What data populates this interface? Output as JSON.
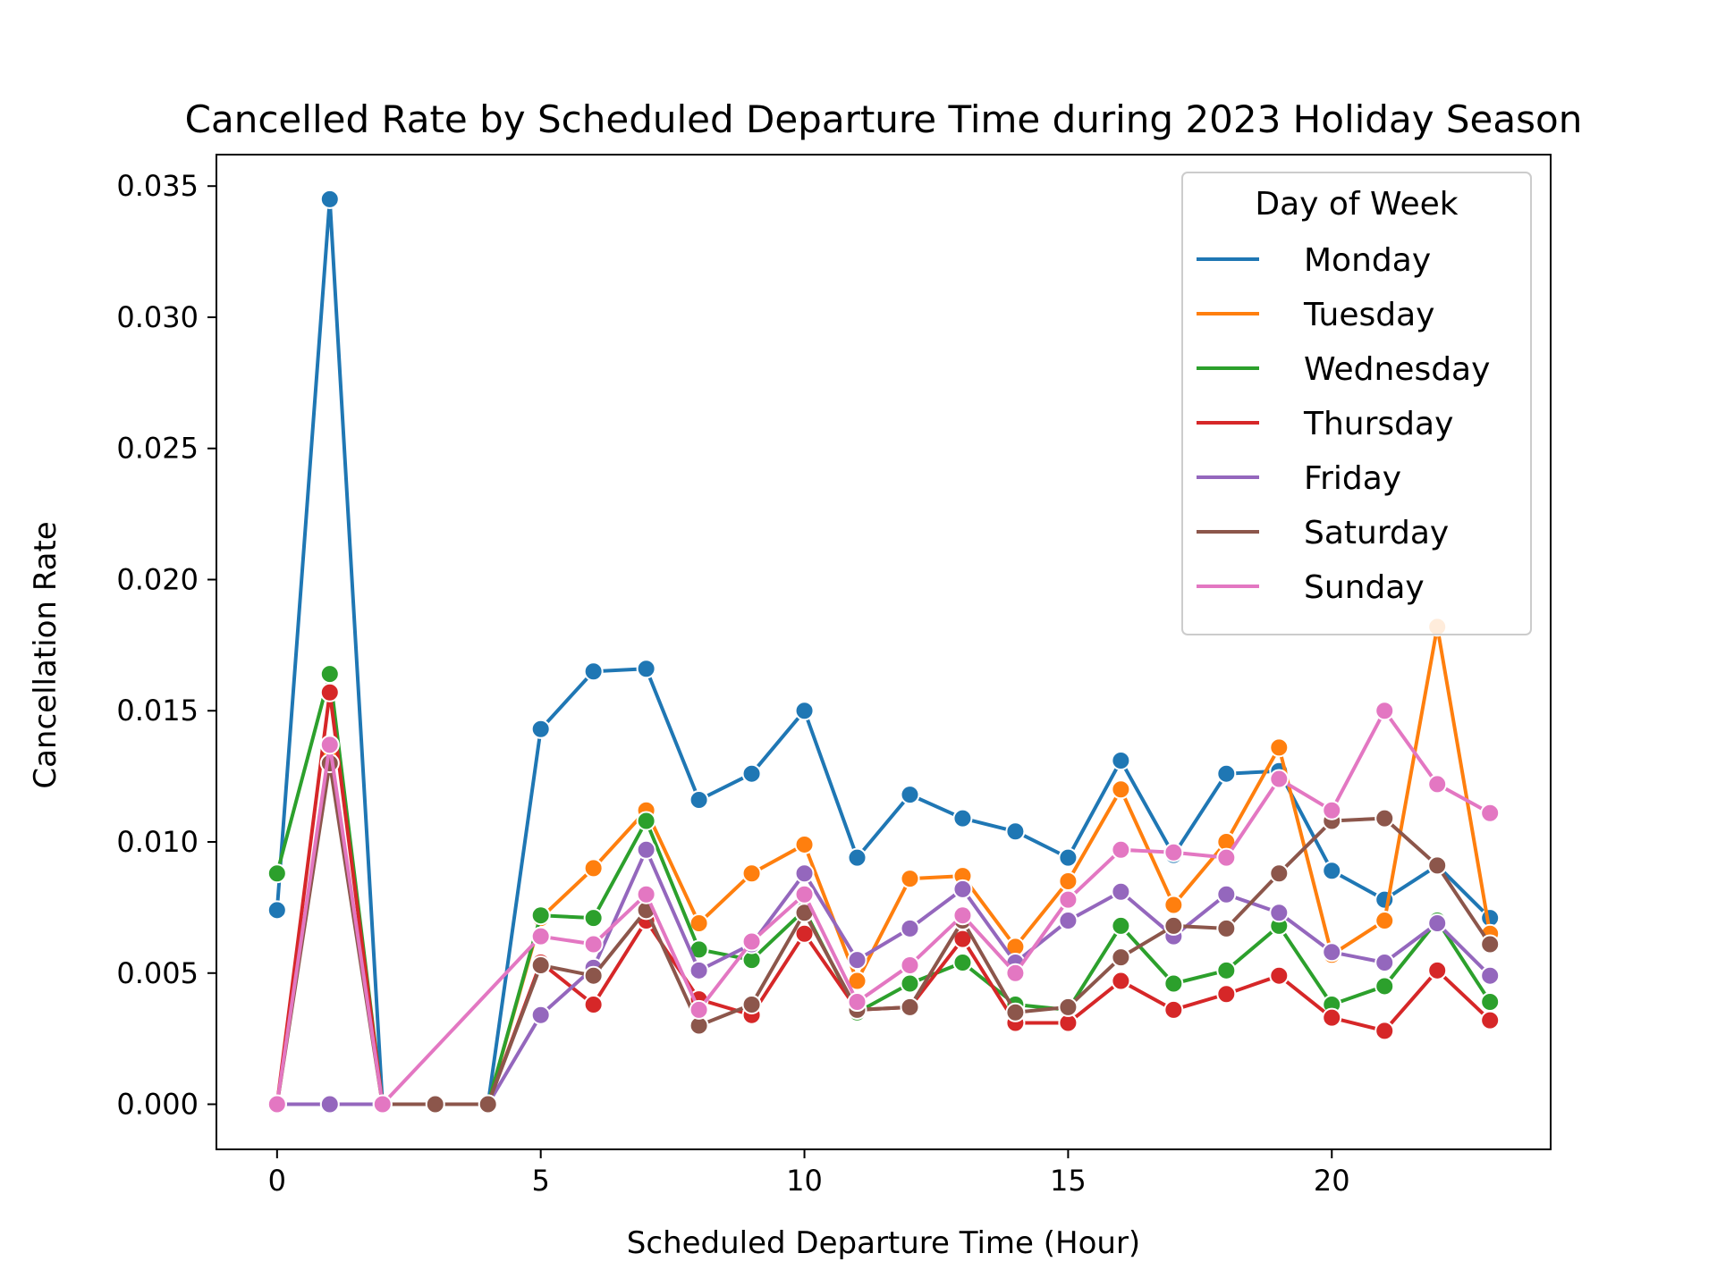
{
  "chart_data": {
    "type": "line",
    "title": "Cancelled Rate by Scheduled Departure Time during 2023 Holiday Season",
    "xlabel": "Scheduled Departure Time (Hour)",
    "ylabel": "Cancellation Rate",
    "xlim": [
      -1.15,
      24.15
    ],
    "ylim": [
      -0.00172,
      0.0362
    ],
    "xticks": [
      0,
      5,
      10,
      15,
      20
    ],
    "xtick_labels": [
      "0",
      "5",
      "10",
      "15",
      "20"
    ],
    "yticks": [
      0.0,
      0.005,
      0.01,
      0.015,
      0.02,
      0.025,
      0.03,
      0.035
    ],
    "ytick_labels": [
      "0.000",
      "0.005",
      "0.010",
      "0.015",
      "0.020",
      "0.025",
      "0.030",
      "0.035"
    ],
    "grid": false,
    "legend": {
      "title": "Day of Week",
      "position": "top-right"
    },
    "x": [
      0,
      1,
      2,
      3,
      4,
      5,
      6,
      7,
      8,
      9,
      10,
      11,
      12,
      13,
      14,
      15,
      16,
      17,
      18,
      19,
      20,
      21,
      22,
      23
    ],
    "series": [
      {
        "name": "Monday",
        "color": "#1f77b4",
        "values": [
          0.0074,
          0.0345,
          0.0,
          0.0,
          0.0,
          0.0143,
          0.0165,
          0.0166,
          0.0116,
          0.0126,
          0.015,
          0.0094,
          0.0118,
          0.0109,
          0.0104,
          0.0094,
          0.0131,
          0.0095,
          0.0126,
          0.0127,
          0.0089,
          0.0078,
          0.0091,
          0.0071
        ]
      },
      {
        "name": "Tuesday",
        "color": "#ff7f0e",
        "values": [
          0.0,
          0.0135,
          0.0,
          0.0,
          0.0,
          0.0071,
          0.009,
          0.0112,
          0.0069,
          0.0088,
          0.0099,
          0.0047,
          0.0086,
          0.0087,
          0.006,
          0.0085,
          0.012,
          0.0076,
          0.01,
          0.0136,
          0.0057,
          0.007,
          0.0182,
          0.0065
        ]
      },
      {
        "name": "Wednesday",
        "color": "#2ca02c",
        "values": [
          0.0088,
          0.0164,
          0.0,
          0.0,
          0.0,
          0.0072,
          0.0071,
          0.0108,
          0.0059,
          0.0055,
          0.0074,
          0.0035,
          0.0046,
          0.0054,
          0.0038,
          0.0036,
          0.0068,
          0.0046,
          0.0051,
          0.0068,
          0.0038,
          0.0045,
          0.007,
          0.0039
        ]
      },
      {
        "name": "Thursday",
        "color": "#d62728",
        "values": [
          0.0,
          0.0157,
          0.0,
          0.0,
          0.0,
          0.0054,
          0.0038,
          0.007,
          0.004,
          0.0034,
          0.0065,
          0.0036,
          0.0037,
          0.0063,
          0.0031,
          0.0031,
          0.0047,
          0.0036,
          0.0042,
          0.0049,
          0.0033,
          0.0028,
          0.0051,
          0.0032
        ]
      },
      {
        "name": "Friday",
        "color": "#9467bd",
        "values": [
          0.0,
          0.0,
          0.0,
          0.0,
          0.0,
          0.0034,
          0.0052,
          0.0097,
          0.0051,
          0.0061,
          0.0088,
          0.0055,
          0.0067,
          0.0082,
          0.0054,
          0.007,
          0.0081,
          0.0064,
          0.008,
          0.0073,
          0.0058,
          0.0054,
          0.0069,
          0.0049
        ]
      },
      {
        "name": "Saturday",
        "color": "#8c564b",
        "values": [
          0.0,
          0.013,
          0.0,
          0.0,
          0.0,
          0.0053,
          0.0049,
          0.0074,
          0.003,
          0.0038,
          0.0073,
          0.0036,
          0.0037,
          0.007,
          0.0035,
          0.0037,
          0.0056,
          0.0068,
          0.0067,
          0.0088,
          0.0108,
          0.0109,
          0.0091,
          0.0061
        ]
      },
      {
        "name": "Sunday",
        "color": "#e377c2",
        "values": [
          0.0,
          0.0137,
          0.0,
          null,
          null,
          0.0064,
          0.0061,
          0.008,
          0.0036,
          0.0062,
          0.008,
          0.0039,
          0.0053,
          0.0072,
          0.005,
          0.0078,
          0.0097,
          0.0096,
          0.0094,
          0.0124,
          0.0112,
          0.015,
          0.0122,
          0.0111
        ]
      }
    ]
  }
}
